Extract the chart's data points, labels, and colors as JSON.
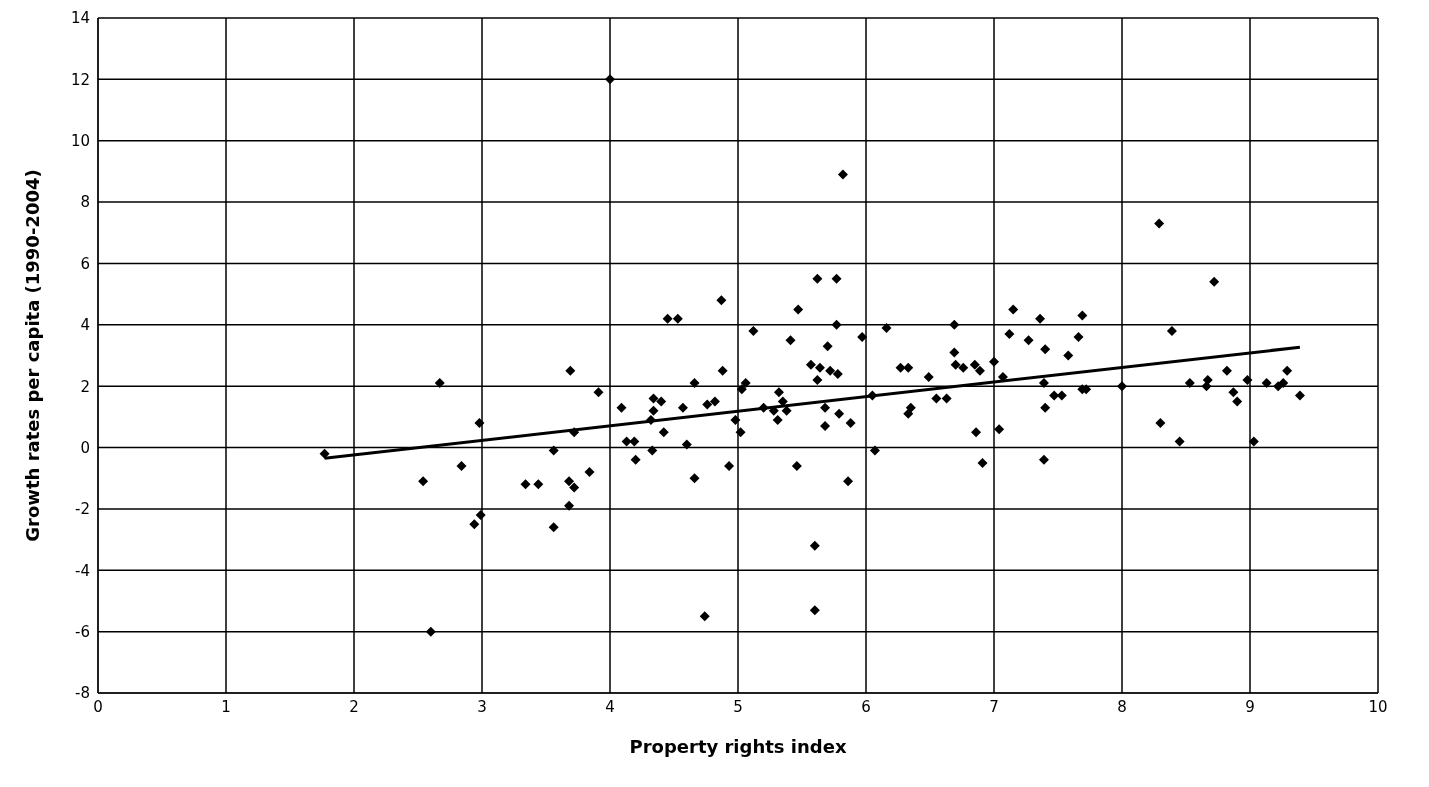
{
  "chart_data": {
    "type": "scatter",
    "xlabel": "Property rights index",
    "ylabel": "Growth rates per capita (1990-2004)",
    "xlim": [
      0,
      10
    ],
    "ylim": [
      -8,
      14
    ],
    "xticks": [
      0,
      1,
      2,
      3,
      4,
      5,
      6,
      7,
      8,
      9,
      10
    ],
    "yticks": [
      -8,
      -6,
      -4,
      -2,
      0,
      2,
      4,
      6,
      8,
      10,
      12,
      14
    ],
    "grid": true,
    "legend": false,
    "series": [
      {
        "color": "#000000",
        "marker": "diamond",
        "x": [
          1.77,
          2.54,
          2.6,
          2.67,
          2.84,
          2.94,
          2.98,
          2.99,
          3.34,
          3.44,
          3.56,
          3.56,
          3.68,
          3.69,
          3.68,
          3.72,
          3.72,
          3.84,
          3.91,
          4.0,
          4.09,
          4.13,
          4.19,
          4.2,
          4.32,
          4.34,
          4.33,
          4.34,
          4.4,
          4.42,
          4.45,
          4.53,
          4.57,
          4.6,
          4.66,
          4.66,
          4.74,
          4.76,
          4.82,
          4.87,
          4.88,
          4.93,
          4.98,
          5.02,
          5.03,
          5.06,
          5.12,
          5.2,
          5.28,
          5.31,
          5.32,
          5.35,
          5.38,
          5.41,
          5.46,
          5.47,
          5.57,
          5.6,
          5.6,
          5.62,
          5.64,
          5.62,
          5.68,
          5.68,
          5.7,
          5.72,
          5.77,
          5.77,
          5.78,
          5.79,
          5.82,
          5.86,
          5.88,
          5.97,
          6.05,
          6.07,
          6.16,
          6.27,
          6.33,
          6.33,
          6.35,
          6.49,
          6.55,
          6.63,
          6.69,
          6.69,
          6.7,
          6.76,
          6.85,
          6.86,
          6.89,
          6.91,
          7.0,
          7.04,
          7.07,
          7.12,
          7.15,
          7.27,
          7.36,
          7.39,
          7.39,
          7.4,
          7.4,
          7.47,
          7.53,
          7.58,
          7.66,
          7.69,
          7.69,
          7.72,
          8.0,
          8.29,
          8.3,
          8.39,
          8.45,
          8.53,
          8.66,
          8.67,
          8.72,
          8.82,
          8.87,
          8.9,
          8.98,
          9.03,
          9.13,
          9.22,
          9.26,
          9.29,
          9.39
        ],
        "values": [
          -0.2,
          -1.1,
          -6.0,
          2.1,
          -0.6,
          -2.5,
          0.8,
          -2.2,
          -1.2,
          -1.2,
          -0.1,
          -2.6,
          -1.9,
          2.5,
          -1.1,
          -1.3,
          0.5,
          -0.8,
          1.8,
          12.0,
          1.3,
          0.2,
          0.2,
          -0.4,
          0.9,
          1.2,
          -0.1,
          1.6,
          1.5,
          0.5,
          4.2,
          4.2,
          1.3,
          0.1,
          2.1,
          -1.0,
          -5.5,
          1.4,
          1.5,
          4.8,
          2.5,
          -0.6,
          0.9,
          0.5,
          1.9,
          2.1,
          3.8,
          1.3,
          1.2,
          0.9,
          1.8,
          1.5,
          1.2,
          3.5,
          -0.6,
          4.5,
          2.7,
          -3.2,
          -5.3,
          5.5,
          2.6,
          2.2,
          1.3,
          0.7,
          3.3,
          2.5,
          5.5,
          4.0,
          2.4,
          1.1,
          8.9,
          -1.1,
          0.8,
          3.6,
          1.7,
          -0.1,
          3.9,
          2.6,
          2.6,
          1.1,
          1.3,
          2.3,
          1.6,
          1.6,
          4.0,
          3.1,
          2.7,
          2.6,
          2.7,
          0.5,
          2.5,
          -0.5,
          2.8,
          0.6,
          2.3,
          3.7,
          4.5,
          3.5,
          4.2,
          -0.4,
          2.1,
          1.3,
          3.2,
          1.7,
          1.7,
          3.0,
          3.6,
          4.3,
          1.9,
          1.9,
          2.0,
          7.3,
          0.8,
          3.8,
          0.2,
          2.1,
          2.0,
          2.2,
          5.4,
          2.5,
          1.8,
          1.5,
          2.2,
          0.2,
          2.1,
          2.0,
          2.1,
          2.5,
          1.7
        ]
      },
      {
        "type": "line",
        "color": "#000000",
        "marker": "none",
        "line_style": "solid",
        "x": [
          1.77,
          9.39
        ],
        "values": [
          -0.35,
          3.27
        ]
      }
    ]
  }
}
